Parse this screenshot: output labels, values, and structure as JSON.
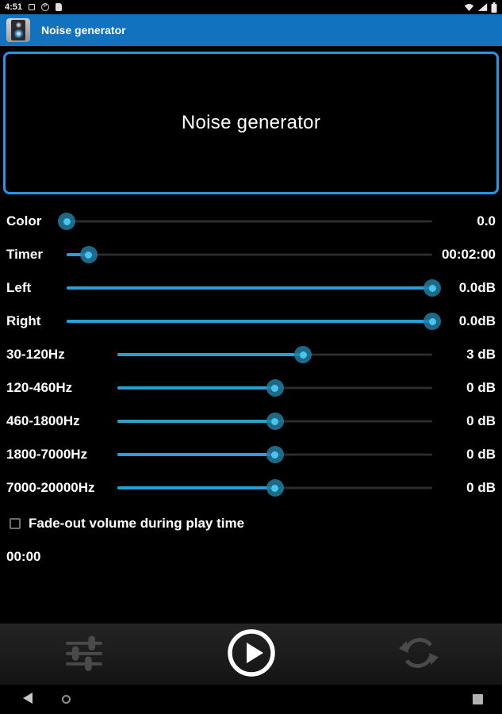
{
  "status_bar": {
    "time": "4:51",
    "left_icons": [
      "square-notification-icon",
      "circle-notification-icon",
      "storage-notification-icon"
    ],
    "right_icons": [
      "wifi-icon",
      "signal-icon",
      "battery-icon"
    ]
  },
  "app_bar": {
    "title": "Noise generator"
  },
  "display_panel": {
    "title": "Noise generator",
    "border_color": "#2695ea"
  },
  "sliders": [
    {
      "label": "Color",
      "value": "0.0",
      "percent": 0,
      "label_width": "short"
    },
    {
      "label": "Timer",
      "value": "00:02:00",
      "percent": 6,
      "label_width": "short"
    },
    {
      "label": "Left",
      "value": "0.0dB",
      "percent": 100,
      "label_width": "short"
    },
    {
      "label": "Right",
      "value": "0.0dB",
      "percent": 100,
      "label_width": "short"
    },
    {
      "label": "30-120Hz",
      "value": "3 dB",
      "percent": 59,
      "label_width": "long"
    },
    {
      "label": "120-460Hz",
      "value": "0 dB",
      "percent": 50,
      "label_width": "long"
    },
    {
      "label": "460-1800Hz",
      "value": "0 dB",
      "percent": 50,
      "label_width": "long"
    },
    {
      "label": "1800-7000Hz",
      "value": "0 dB",
      "percent": 50,
      "label_width": "long"
    },
    {
      "label": "7000-20000Hz",
      "value": "0 dB",
      "percent": 50,
      "label_width": "long"
    }
  ],
  "fade_checkbox": {
    "label": "Fade-out volume during play time",
    "checked": false
  },
  "elapsed_time": "00:00",
  "toolbar": {
    "icons": [
      "equalizer-icon",
      "play-icon",
      "sync-icon"
    ]
  },
  "nav_bar": {
    "icons": [
      "back-icon",
      "home-icon",
      "recents-icon"
    ]
  },
  "colors": {
    "app_bar": "#1173c0",
    "slider_fill": "#2b9fd4",
    "thumb": "#227ba0",
    "panel_border": "#2695ea"
  }
}
